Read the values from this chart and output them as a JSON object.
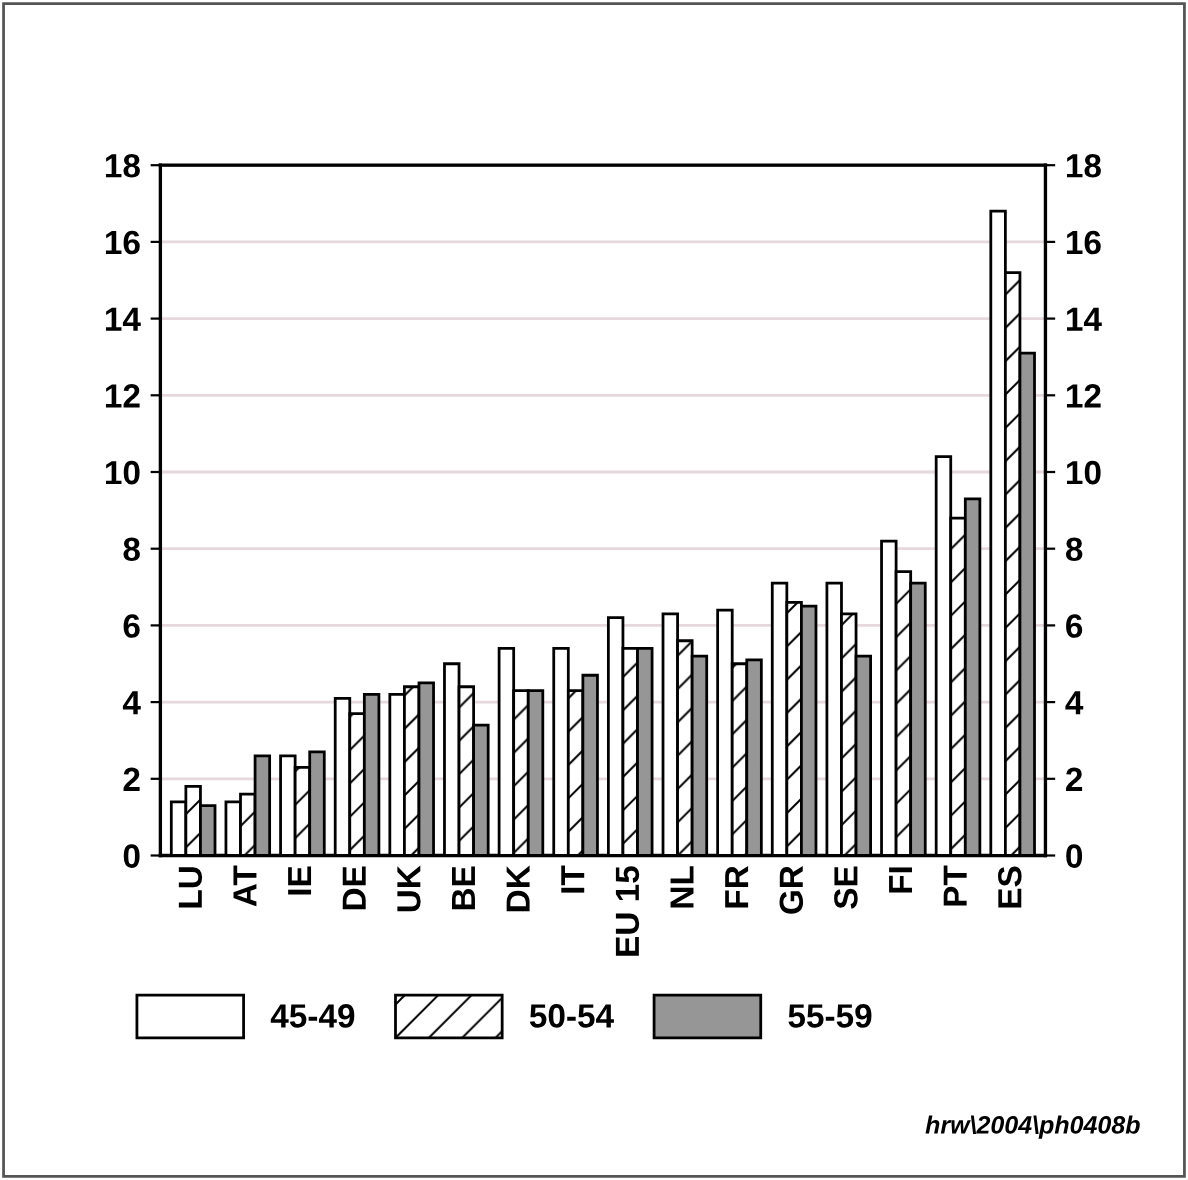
{
  "chart_data": {
    "type": "bar",
    "categories": [
      "LU",
      "AT",
      "IE",
      "DE",
      "UK",
      "BE",
      "DK",
      "IT",
      "EU 15",
      "NL",
      "FR",
      "GR",
      "SE",
      "FI",
      "PT",
      "ES"
    ],
    "series": [
      {
        "name": "45-49",
        "color": "#ffffff",
        "values": [
          1.4,
          1.4,
          2.6,
          4.1,
          4.2,
          5.0,
          5.4,
          5.4,
          6.2,
          6.3,
          6.4,
          7.1,
          7.1,
          8.2,
          10.4,
          16.8
        ]
      },
      {
        "name": "50-54",
        "color": "#ffffff",
        "values": [
          1.8,
          1.6,
          2.3,
          3.7,
          4.4,
          4.4,
          4.3,
          4.3,
          5.4,
          5.6,
          5.0,
          6.6,
          6.3,
          7.4,
          8.8,
          15.2
        ]
      },
      {
        "name": "55-59",
        "color": "#969696",
        "values": [
          1.3,
          2.6,
          2.7,
          4.2,
          4.5,
          3.4,
          4.3,
          4.7,
          5.4,
          5.2,
          5.1,
          6.5,
          5.2,
          7.1,
          9.3,
          13.1
        ]
      }
    ],
    "ylim": [
      0,
      18
    ],
    "yticks": [
      0,
      2,
      4,
      6,
      8,
      10,
      12,
      14,
      16,
      18
    ],
    "y2lim": [
      0,
      18
    ],
    "y2ticks": [
      0,
      2,
      4,
      6,
      8,
      10,
      12,
      14,
      16,
      18
    ],
    "grid": "y",
    "legend": "bottom",
    "annotations": [
      "hrw\\2004\\ph0408b"
    ]
  }
}
